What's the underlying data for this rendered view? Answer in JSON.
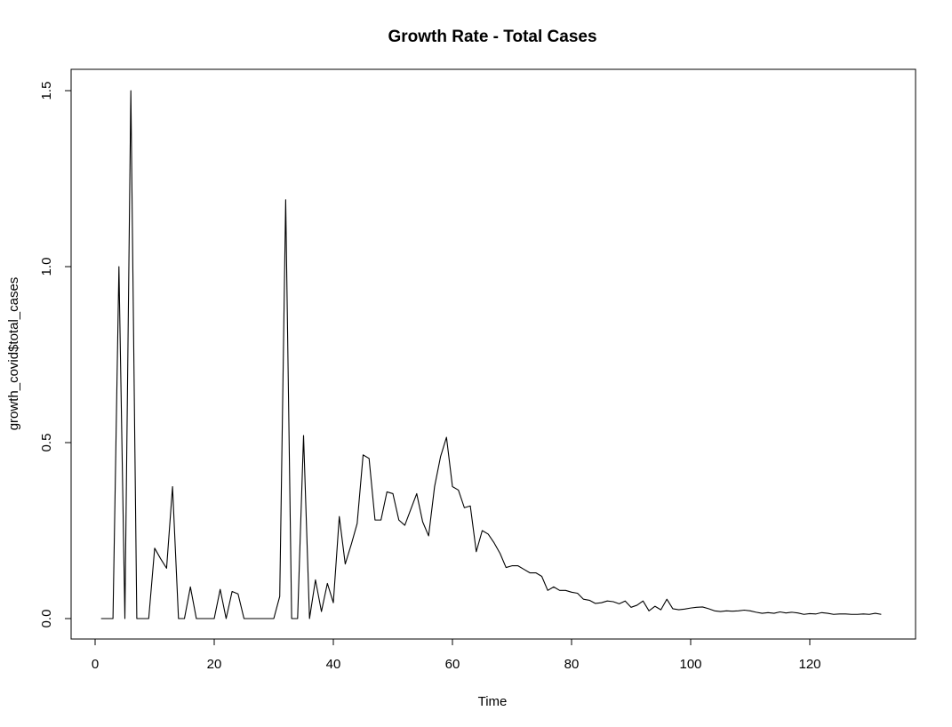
{
  "chart_data": {
    "type": "line",
    "title": "Growth Rate - Total Cases",
    "xlabel": "Time",
    "ylabel": "growth_covid$total_cases",
    "xlim": [
      1,
      132
    ],
    "ylim": [
      0,
      1.5
    ],
    "xticks": [
      0,
      20,
      40,
      60,
      80,
      100,
      120
    ],
    "yticks": [
      0.0,
      0.5,
      1.0,
      1.5
    ],
    "xtick_labels": [
      "0",
      "20",
      "40",
      "60",
      "80",
      "100",
      "120"
    ],
    "ytick_labels": [
      "0.0",
      "0.5",
      "1.0",
      "1.5"
    ],
    "grid": false,
    "line_color": "#000000",
    "series": [
      {
        "x": [
          1,
          2,
          3,
          4,
          5,
          6,
          7,
          8,
          9,
          10,
          11,
          12,
          13,
          14,
          15,
          16,
          17,
          18,
          19,
          20,
          21,
          22,
          23,
          24,
          25,
          26,
          27,
          28,
          29,
          30,
          31,
          32,
          33,
          34,
          35,
          36,
          37,
          38,
          39,
          40,
          41,
          42,
          43,
          44,
          45,
          46,
          47,
          48,
          49,
          50,
          51,
          52,
          53,
          54,
          55,
          56,
          57,
          58,
          59,
          60,
          61,
          62,
          63,
          64,
          65,
          66,
          67,
          68,
          69,
          70,
          71,
          72,
          73,
          74,
          75,
          76,
          77,
          78,
          79,
          80,
          81,
          82,
          83,
          84,
          85,
          86,
          87,
          88,
          89,
          90,
          91,
          92,
          93,
          94,
          95,
          96,
          97,
          98,
          99,
          100,
          101,
          102,
          103,
          104,
          105,
          106,
          107,
          108,
          109,
          110,
          111,
          112,
          113,
          114,
          115,
          116,
          117,
          118,
          119,
          120,
          121,
          122,
          123,
          124,
          125,
          126,
          127,
          128,
          129,
          130,
          131,
          132
        ],
        "values": [
          0,
          0,
          0,
          1.0,
          0,
          1.5,
          0,
          0,
          0,
          0.2,
          0.17,
          0.143,
          0.375,
          0,
          0,
          0.09,
          0,
          0,
          0,
          0,
          0.083,
          0,
          0.077,
          0.07,
          0,
          0,
          0,
          0,
          0,
          0,
          0.063,
          1.19,
          0,
          0,
          0.52,
          0,
          0.11,
          0.02,
          0.1,
          0.045,
          0.29,
          0.155,
          0.21,
          0.27,
          0.465,
          0.455,
          0.28,
          0.28,
          0.36,
          0.355,
          0.28,
          0.265,
          0.31,
          0.355,
          0.275,
          0.235,
          0.375,
          0.46,
          0.515,
          0.375,
          0.365,
          0.315,
          0.32,
          0.19,
          0.25,
          0.24,
          0.215,
          0.185,
          0.145,
          0.15,
          0.15,
          0.14,
          0.13,
          0.13,
          0.12,
          0.08,
          0.09,
          0.08,
          0.08,
          0.075,
          0.072,
          0.055,
          0.052,
          0.043,
          0.045,
          0.05,
          0.048,
          0.042,
          0.05,
          0.032,
          0.038,
          0.05,
          0.022,
          0.035,
          0.025,
          0.055,
          0.028,
          0.025,
          0.027,
          0.03,
          0.032,
          0.033,
          0.028,
          0.022,
          0.02,
          0.022,
          0.021,
          0.022,
          0.024,
          0.022,
          0.018,
          0.015,
          0.017,
          0.015,
          0.019,
          0.016,
          0.018,
          0.016,
          0.012,
          0.014,
          0.013,
          0.017,
          0.015,
          0.012,
          0.013,
          0.013,
          0.012,
          0.012,
          0.013,
          0.012,
          0.015,
          0.012
        ]
      }
    ]
  }
}
